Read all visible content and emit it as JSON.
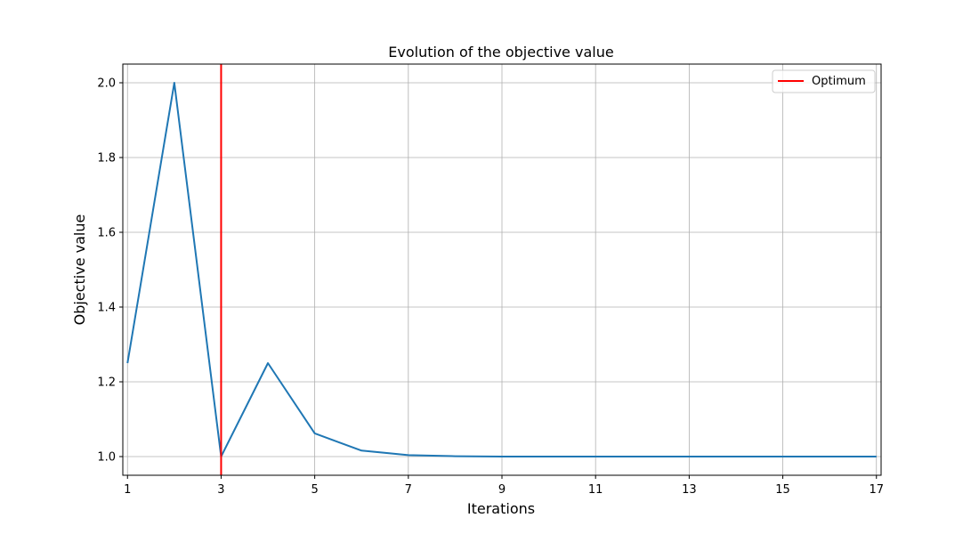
{
  "chart_data": {
    "type": "line",
    "title": "Evolution of the objective value",
    "xlabel": "Iterations",
    "ylabel": "Objective value",
    "xlim": [
      0.9,
      17.1
    ],
    "ylim": [
      0.95,
      2.05
    ],
    "xticks": [
      1,
      3,
      5,
      7,
      9,
      11,
      13,
      15,
      17
    ],
    "yticks": [
      1.0,
      1.2,
      1.4,
      1.6,
      1.8,
      2.0
    ],
    "xtick_labels": [
      "1",
      "3",
      "5",
      "7",
      "9",
      "11",
      "13",
      "15",
      "17"
    ],
    "ytick_labels": [
      "1.0",
      "1.2",
      "1.4",
      "1.6",
      "1.8",
      "2.0"
    ],
    "grid": true,
    "legend_position": "top-right",
    "series": [
      {
        "color": "#1f77b4",
        "x": [
          1,
          2,
          3,
          4,
          5,
          6,
          7,
          8,
          9,
          10,
          11,
          12,
          13,
          14,
          15,
          16,
          17
        ],
        "y": [
          1.25,
          2.0,
          1.0,
          1.25,
          1.062,
          1.016,
          1.004,
          1.001,
          1.0,
          1.0,
          1.0,
          1.0,
          1.0,
          1.0,
          1.0,
          1.0,
          1.0
        ]
      }
    ],
    "vlines": [
      {
        "name": "Optimum",
        "x": 3,
        "color": "#ff0000"
      }
    ]
  }
}
